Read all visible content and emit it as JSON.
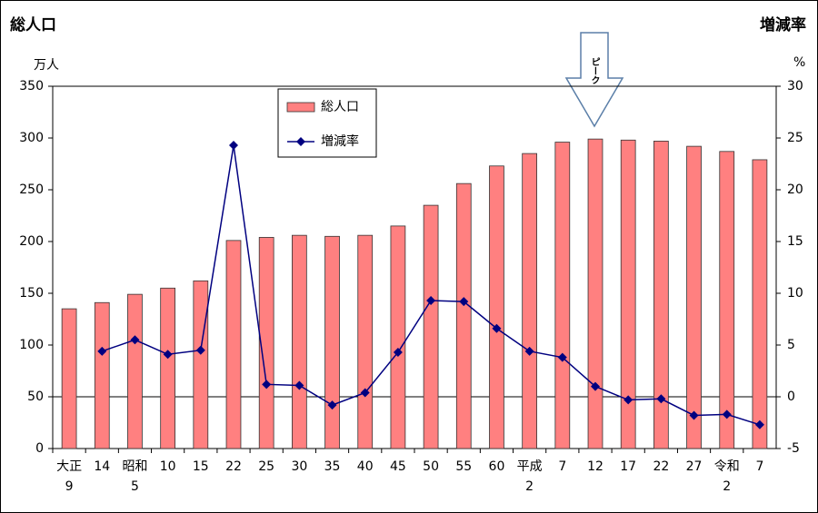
{
  "chart_data": {
    "type": "bar",
    "ylabel": "総人口",
    "yunit": "万人",
    "y2label": "増減率",
    "y2unit": "%",
    "annotation": "ピーク",
    "categories": [
      "大正\n9",
      "14",
      "昭和\n5",
      "10",
      "15",
      "22",
      "25",
      "30",
      "35",
      "40",
      "45",
      "50",
      "55",
      "60",
      "平成\n2",
      "7",
      "12",
      "17",
      "22",
      "27",
      "令和\n2",
      "7"
    ],
    "series": [
      {
        "name": "総人口",
        "type": "bar",
        "color": "#ff8080",
        "values": [
          135,
          141,
          149,
          155,
          162,
          201,
          204,
          206,
          205,
          206,
          215,
          235,
          256,
          273,
          285,
          296,
          299,
          298,
          297,
          292,
          287,
          279
        ]
      },
      {
        "name": "増減率",
        "type": "line",
        "axis": "y2",
        "color": "#000080",
        "values": [
          null,
          4.4,
          5.5,
          4.1,
          4.5,
          24.3,
          1.2,
          1.1,
          -0.8,
          0.4,
          4.3,
          9.3,
          9.2,
          6.6,
          4.4,
          3.8,
          1.0,
          -0.3,
          -0.2,
          -1.8,
          -1.7,
          -2.7
        ]
      }
    ],
    "ylim": [
      0,
      350
    ],
    "yticks": [
      0,
      50,
      100,
      150,
      200,
      250,
      300,
      350
    ],
    "y2lim": [
      -5,
      30
    ],
    "y2ticks": [
      -5,
      0,
      5,
      10,
      15,
      20,
      25,
      30
    ]
  }
}
